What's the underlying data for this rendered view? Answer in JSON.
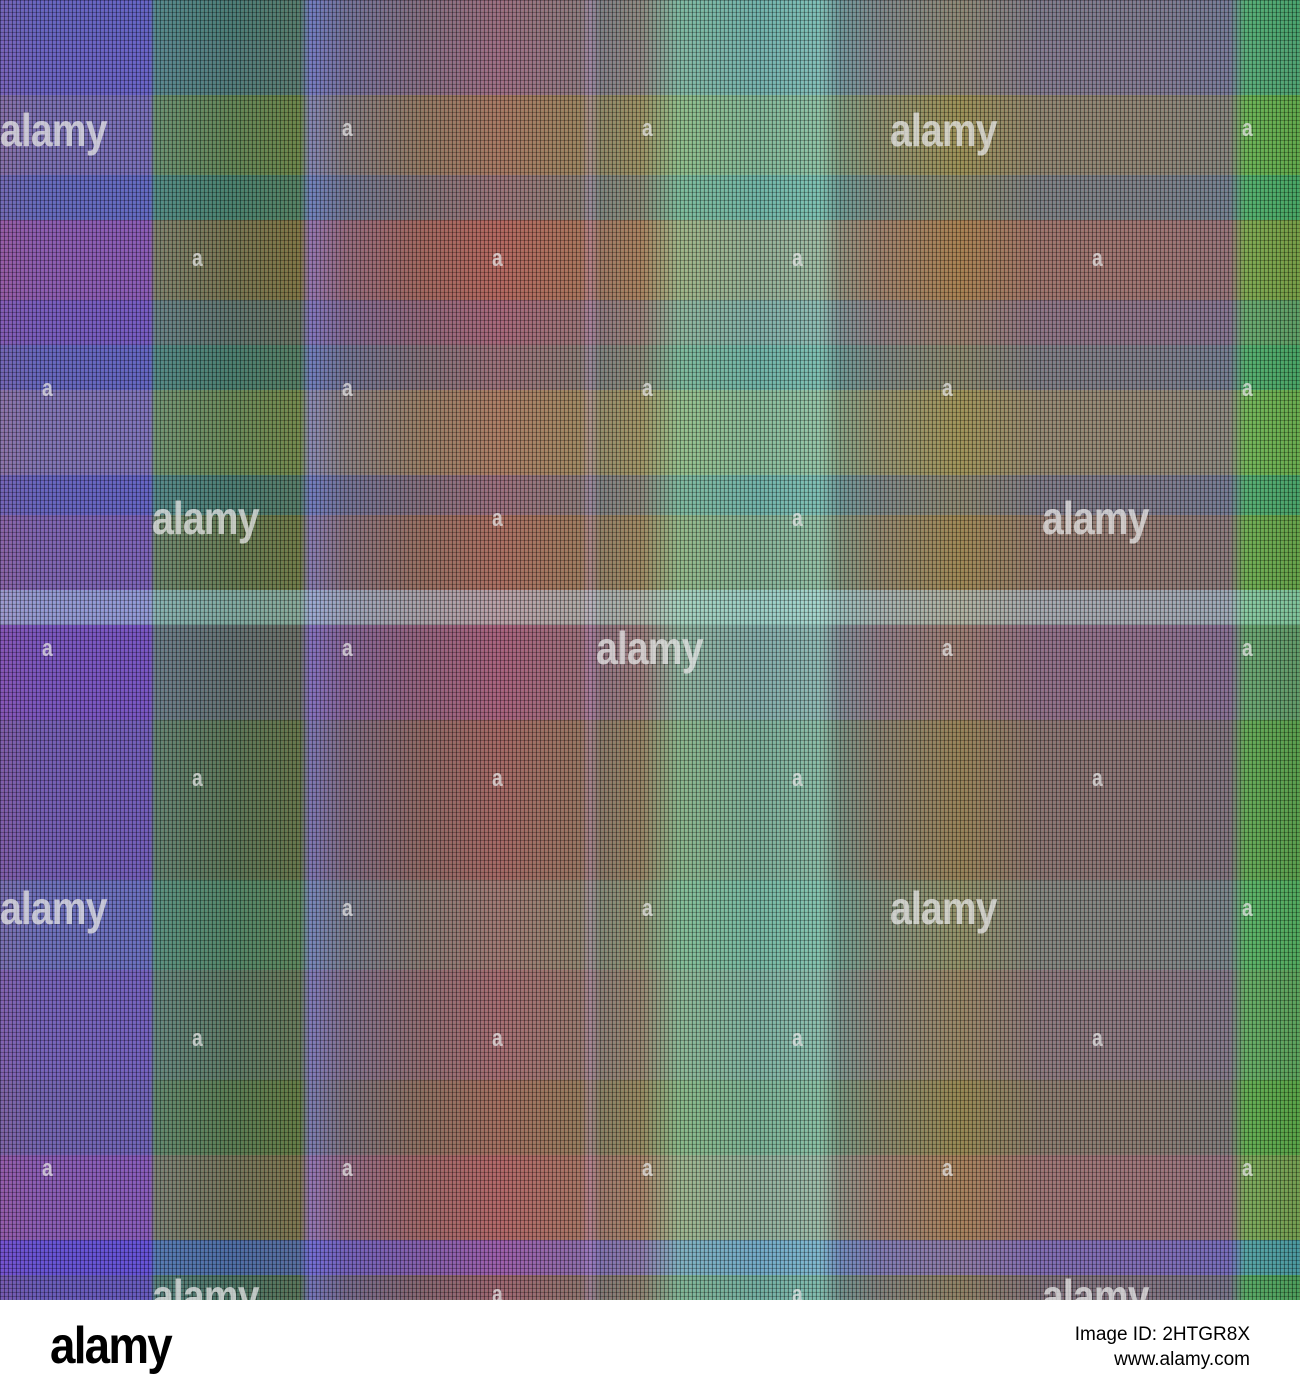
{
  "image": {
    "description_colors": {
      "purple": "#4a3bb0",
      "green": "#2e5a3a",
      "teal": "#5aa08a",
      "rust": "#8a4a4a",
      "olive": "#7a6a3a",
      "blue_stripe": "#1a0ad8",
      "light_band": "#96c8e6"
    }
  },
  "watermarks": {
    "big": "alamy",
    "small": "a"
  },
  "footer": {
    "logo": "alamy",
    "image_id": "Image ID: 2HTGR8X",
    "site": "www.alamy.com"
  }
}
